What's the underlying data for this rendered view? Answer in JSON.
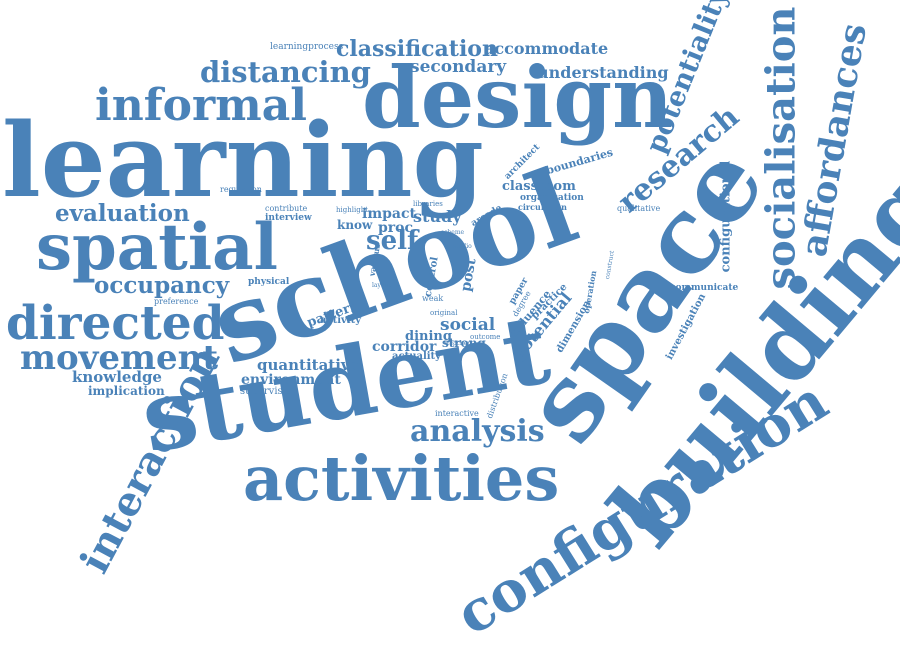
{
  "colors": {
    "background": "#ffffff",
    "text": "#4a82b8"
  },
  "words": [
    "learning",
    "design",
    "informal",
    "spatial",
    "distancing",
    "classification",
    "accommodate",
    "secondary",
    "understanding",
    "learningprocess",
    "potentiality",
    "socialisation",
    "affordances",
    "research",
    "school",
    "space",
    "student",
    "building",
    "configuration",
    "activities",
    "analysis",
    "interaction",
    "directed",
    "movement",
    "occupancy",
    "evaluation",
    "knowledge",
    "implication",
    "quantitative",
    "environment",
    "supervision",
    "social",
    "dining",
    "corridor",
    "actuality",
    "strong",
    "outcome",
    "pattern",
    "activity",
    "impact",
    "know",
    "proc",
    "self",
    "study",
    "arcade",
    "classroom",
    "organisation",
    "circulation",
    "boundaries",
    "architect",
    "configurational",
    "qualitative",
    "communicate",
    "investigation",
    "potential",
    "dimension",
    "influence",
    "practice",
    "degree",
    "paper",
    "post",
    "contribute",
    "interview",
    "highlight",
    "regulation",
    "physical",
    "preference",
    "various",
    "control",
    "operation",
    "distribution",
    "interactive",
    "weak",
    "original",
    "teacher",
    "libraries",
    "scheme",
    "studio",
    "layout",
    "construct"
  ]
}
